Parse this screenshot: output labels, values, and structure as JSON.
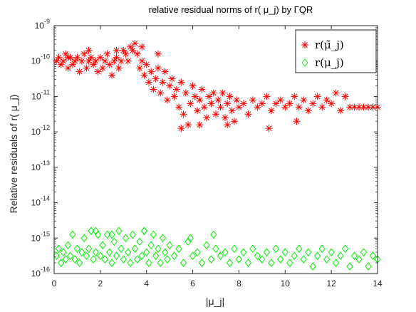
{
  "chart_data": {
    "type": "scatter",
    "title": "relative residual norms of r( μ_j) by ΓQR",
    "xlabel": "|μ_j|",
    "ylabel": "Relative residuals of r( μ_j)",
    "xlim": [
      0,
      14
    ],
    "ylim_log10": [
      -16,
      -9
    ],
    "yscale": "log",
    "x_ticks": [
      "0",
      "2",
      "4",
      "6",
      "8",
      "10",
      "12",
      "14"
    ],
    "y_tick_exponents": [
      "-16",
      "-15",
      "-14",
      "-13",
      "-12",
      "-11",
      "-10",
      "-9"
    ],
    "legend_position": "top-right",
    "series": [
      {
        "name": "r(μ̃_j)",
        "marker": "asterisk",
        "color": "#ff0000",
        "points": [
          [
            0.1,
            -10.0
          ],
          [
            0.2,
            -9.9
          ],
          [
            0.3,
            -10.1
          ],
          [
            0.4,
            -10.0
          ],
          [
            0.5,
            -9.8
          ],
          [
            0.6,
            -10.2
          ],
          [
            0.7,
            -9.9
          ],
          [
            0.8,
            -10.1
          ],
          [
            0.9,
            -10.0
          ],
          [
            1.0,
            -9.9
          ],
          [
            1.1,
            -10.3
          ],
          [
            1.2,
            -10.0
          ],
          [
            1.3,
            -9.8
          ],
          [
            1.4,
            -10.2
          ],
          [
            1.5,
            -10.0
          ],
          [
            1.6,
            -9.9
          ],
          [
            1.7,
            -10.1
          ],
          [
            1.8,
            -10.0
          ],
          [
            1.9,
            -10.3
          ],
          [
            2.0,
            -9.9
          ],
          [
            2.1,
            -10.2
          ],
          [
            2.2,
            -10.0
          ],
          [
            2.3,
            -9.8
          ],
          [
            2.4,
            -10.1
          ],
          [
            2.5,
            -10.4
          ],
          [
            2.6,
            -10.0
          ],
          [
            2.7,
            -9.9
          ],
          [
            2.8,
            -10.2
          ],
          [
            2.9,
            -10.0
          ],
          [
            3.0,
            -9.7
          ],
          [
            3.1,
            -9.8
          ],
          [
            3.2,
            -10.0
          ],
          [
            3.3,
            -9.6
          ],
          [
            3.4,
            -9.7
          ],
          [
            3.5,
            -9.5
          ],
          [
            3.6,
            -9.8
          ],
          [
            3.7,
            -10.2
          ],
          [
            3.8,
            -10.0
          ],
          [
            3.9,
            -10.4
          ],
          [
            4.0,
            -10.1
          ],
          [
            4.1,
            -10.6
          ],
          [
            4.2,
            -10.3
          ],
          [
            4.3,
            -10.8
          ],
          [
            4.4,
            -10.5
          ],
          [
            4.5,
            -10.2
          ],
          [
            4.6,
            -10.9
          ],
          [
            4.7,
            -10.6
          ],
          [
            4.8,
            -10.3
          ],
          [
            4.9,
            -11.1
          ],
          [
            5.0,
            -10.7
          ],
          [
            5.1,
            -10.5
          ],
          [
            5.2,
            -11.0
          ],
          [
            5.3,
            -10.8
          ],
          [
            5.4,
            -11.3
          ],
          [
            5.5,
            -10.6
          ],
          [
            5.6,
            -11.5
          ],
          [
            5.7,
            -10.9
          ],
          [
            5.8,
            -11.8
          ],
          [
            5.9,
            -11.2
          ],
          [
            6.0,
            -10.7
          ],
          [
            6.1,
            -11.0
          ],
          [
            6.2,
            -11.4
          ],
          [
            6.3,
            -11.1
          ],
          [
            6.4,
            -10.8
          ],
          [
            6.5,
            -11.3
          ],
          [
            6.6,
            -11.6
          ],
          [
            6.7,
            -11.0
          ],
          [
            6.8,
            -11.2
          ],
          [
            6.9,
            -10.9
          ],
          [
            7.0,
            -11.5
          ],
          [
            7.1,
            -11.1
          ],
          [
            7.2,
            -11.3
          ],
          [
            7.3,
            -10.9
          ],
          [
            7.4,
            -11.6
          ],
          [
            7.5,
            -11.2
          ],
          [
            7.6,
            -11.0
          ],
          [
            7.7,
            -11.4
          ],
          [
            7.8,
            -11.7
          ],
          [
            7.9,
            -11.1
          ],
          [
            8.0,
            -11.3
          ],
          [
            8.2,
            -11.2
          ],
          [
            8.4,
            -11.5
          ],
          [
            8.6,
            -11.1
          ],
          [
            8.8,
            -11.3
          ],
          [
            9.0,
            -11.2
          ],
          [
            9.2,
            -11.0
          ],
          [
            9.4,
            -11.4
          ],
          [
            9.6,
            -11.2
          ],
          [
            9.8,
            -11.1
          ],
          [
            10.0,
            -11.3
          ],
          [
            10.2,
            -11.2
          ],
          [
            10.4,
            -11.0
          ],
          [
            10.6,
            -11.3
          ],
          [
            10.8,
            -11.1
          ],
          [
            11.0,
            -11.4
          ],
          [
            11.2,
            -11.2
          ],
          [
            11.4,
            -11.0
          ],
          [
            11.6,
            -11.3
          ],
          [
            11.8,
            -11.1
          ],
          [
            12.0,
            -11.2
          ],
          [
            12.2,
            -10.9
          ],
          [
            12.4,
            -11.4
          ],
          [
            12.6,
            -11.0
          ],
          [
            12.8,
            -11.3
          ],
          [
            13.0,
            -11.3
          ],
          [
            13.2,
            -11.3
          ],
          [
            13.4,
            -11.3
          ],
          [
            13.6,
            -11.3
          ],
          [
            13.8,
            -11.3
          ],
          [
            14.0,
            -11.3
          ],
          [
            5.5,
            -11.9
          ],
          [
            6.3,
            -11.8
          ],
          [
            7.5,
            -11.8
          ],
          [
            9.3,
            -11.9
          ],
          [
            10.5,
            -11.7
          ],
          [
            3.8,
            -9.6
          ],
          [
            4.5,
            -9.8
          ],
          [
            1.5,
            -9.7
          ],
          [
            0.6,
            -9.9
          ],
          [
            2.7,
            -9.7
          ]
        ]
      },
      {
        "name": "r(μ_j)",
        "marker": "diamond",
        "color": "#00ee00",
        "points": [
          [
            0.1,
            -15.5
          ],
          [
            0.2,
            -15.3
          ],
          [
            0.3,
            -15.7
          ],
          [
            0.4,
            -15.4
          ],
          [
            0.5,
            -15.6
          ],
          [
            0.6,
            -15.2
          ],
          [
            0.7,
            -15.5
          ],
          [
            0.8,
            -14.9
          ],
          [
            0.9,
            -15.6
          ],
          [
            1.0,
            -15.3
          ],
          [
            1.1,
            -15.7
          ],
          [
            1.2,
            -15.4
          ],
          [
            1.3,
            -15.0
          ],
          [
            1.4,
            -15.5
          ],
          [
            1.5,
            -15.3
          ],
          [
            1.6,
            -14.8
          ],
          [
            1.7,
            -15.6
          ],
          [
            1.8,
            -15.4
          ],
          [
            1.9,
            -14.9
          ],
          [
            2.0,
            -15.5
          ],
          [
            2.1,
            -15.2
          ],
          [
            2.2,
            -15.6
          ],
          [
            2.3,
            -14.9
          ],
          [
            2.4,
            -15.4
          ],
          [
            2.5,
            -15.7
          ],
          [
            2.6,
            -15.1
          ],
          [
            2.7,
            -15.5
          ],
          [
            2.8,
            -14.8
          ],
          [
            2.9,
            -15.3
          ],
          [
            3.0,
            -15.6
          ],
          [
            3.1,
            -15.0
          ],
          [
            3.2,
            -15.4
          ],
          [
            3.3,
            -15.7
          ],
          [
            3.4,
            -14.9
          ],
          [
            3.5,
            -15.3
          ],
          [
            3.6,
            -15.6
          ],
          [
            3.7,
            -15.1
          ],
          [
            3.8,
            -15.5
          ],
          [
            3.9,
            -14.8
          ],
          [
            4.0,
            -15.4
          ],
          [
            4.1,
            -15.7
          ],
          [
            4.2,
            -15.2
          ],
          [
            4.3,
            -14.9
          ],
          [
            4.4,
            -15.5
          ],
          [
            4.5,
            -15.3
          ],
          [
            4.6,
            -15.7
          ],
          [
            4.7,
            -15.0
          ],
          [
            4.8,
            -15.4
          ],
          [
            4.9,
            -15.6
          ],
          [
            5.0,
            -15.2
          ],
          [
            5.2,
            -15.5
          ],
          [
            5.4,
            -15.3
          ],
          [
            5.6,
            -15.7
          ],
          [
            5.8,
            -15.1
          ],
          [
            6.0,
            -15.5
          ],
          [
            6.2,
            -15.4
          ],
          [
            6.4,
            -15.7
          ],
          [
            6.6,
            -15.2
          ],
          [
            6.8,
            -15.6
          ],
          [
            7.0,
            -15.3
          ],
          [
            7.2,
            -15.5
          ],
          [
            7.4,
            -15.4
          ],
          [
            7.6,
            -15.7
          ],
          [
            7.8,
            -15.3
          ],
          [
            8.0,
            -15.6
          ],
          [
            8.2,
            -15.4
          ],
          [
            8.4,
            -15.7
          ],
          [
            8.6,
            -15.3
          ],
          [
            8.8,
            -15.5
          ],
          [
            9.0,
            -15.6
          ],
          [
            9.2,
            -15.4
          ],
          [
            9.4,
            -15.7
          ],
          [
            9.6,
            -15.3
          ],
          [
            9.8,
            -15.6
          ],
          [
            10.0,
            -15.4
          ],
          [
            10.2,
            -15.7
          ],
          [
            10.4,
            -15.5
          ],
          [
            10.6,
            -15.3
          ],
          [
            10.8,
            -15.6
          ],
          [
            11.0,
            -15.4
          ],
          [
            11.2,
            -15.8
          ],
          [
            11.4,
            -15.5
          ],
          [
            11.6,
            -15.3
          ],
          [
            11.8,
            -15.6
          ],
          [
            12.0,
            -15.4
          ],
          [
            12.2,
            -15.7
          ],
          [
            12.4,
            -15.5
          ],
          [
            12.6,
            -15.3
          ],
          [
            12.8,
            -15.8
          ],
          [
            13.0,
            -15.5
          ],
          [
            13.2,
            -15.6
          ],
          [
            13.4,
            -15.4
          ],
          [
            13.6,
            -15.8
          ],
          [
            13.8,
            -15.5
          ],
          [
            14.0,
            -15.6
          ],
          [
            1.8,
            -14.8
          ],
          [
            2.5,
            -14.9
          ],
          [
            3.9,
            -14.8
          ],
          [
            5.9,
            -15.0
          ],
          [
            6.9,
            -14.9
          ]
        ]
      }
    ]
  }
}
